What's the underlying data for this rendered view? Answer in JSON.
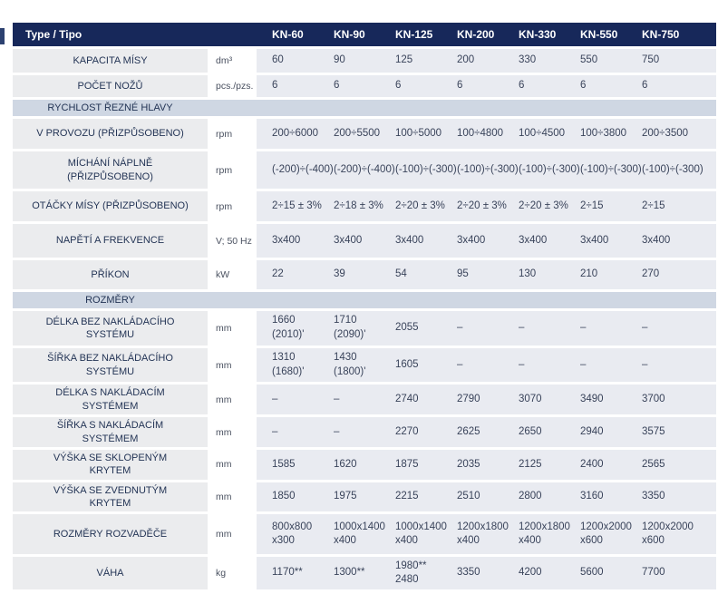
{
  "colors": {
    "header_bg": "#17285a",
    "section_bg": "#cfd7e3",
    "label_bg": "#ebecee",
    "data_bg": "#e9ebf1",
    "label_text": "#233455",
    "value_text": "#39435a",
    "unit_text": "#4a5160",
    "tick": "#2c4170"
  },
  "header": {
    "type_label": "Type / Tipo",
    "models": [
      "KN-60",
      "KN-90",
      "KN-125",
      "KN-200",
      "KN-330",
      "KN-550",
      "KN-750"
    ]
  },
  "rows": [
    {
      "type": "data",
      "label": "KAPACITA MÍSY",
      "unit": "dm³",
      "values": [
        "60",
        "90",
        "125",
        "200",
        "330",
        "550",
        "750"
      ]
    },
    {
      "type": "data",
      "label": "POČET NOŽŮ",
      "unit": "pcs./pzs.",
      "values": [
        "6",
        "6",
        "6",
        "6",
        "6",
        "6",
        "6"
      ]
    },
    {
      "type": "section",
      "label": "RYCHLOST ŘEZNÉ HLAVY"
    },
    {
      "type": "data",
      "label": "V PROVOZU (PŘIZPŮSOBENO)",
      "unit": "rpm",
      "values": [
        "200÷6000",
        "200÷5500",
        "100÷5000",
        "100÷4800",
        "100÷4500",
        "100÷3800",
        "200÷3500"
      ]
    },
    {
      "type": "data",
      "label": "MÍCHÁNÍ NÁPLNĚ\n(PŘIZPŮSOBENO)",
      "unit": "rpm",
      "values": [
        "(-200)÷(-400)",
        "(-200)÷(-400)",
        "(-100)÷(-300)",
        "(-100)÷(-300)",
        "(-100)÷(-300)",
        "(-100)÷(-300)",
        "(-100)÷(-300)"
      ]
    },
    {
      "type": "data",
      "label": "OTÁČKY MÍSY (PŘIZPŮSOBENO)",
      "unit": "rpm",
      "values": [
        "2÷15 ± 3%",
        "2÷18 ± 3%",
        "2÷20 ± 3%",
        "2÷20 ± 3%",
        "2÷20 ± 3%",
        "2÷15",
        "2÷15"
      ]
    },
    {
      "type": "data",
      "label": "NAPĚTÍ A FREKVENCE",
      "unit": "V; 50 Hz",
      "values": [
        "3x400",
        "3x400",
        "3x400",
        "3x400",
        "3x400",
        "3x400",
        "3x400"
      ]
    },
    {
      "type": "data",
      "label": "PŘÍKON",
      "unit": "kW",
      "values": [
        "22",
        "39",
        "54",
        "95",
        "130",
        "210",
        "270"
      ]
    },
    {
      "type": "section",
      "label": "ROZMĚRY"
    },
    {
      "type": "data",
      "label": "DÉLKA BEZ NAKLÁDACÍHO\nSYSTÉMU",
      "unit": "mm",
      "values": [
        "1660\n(2010)'",
        "1710\n(2090)'",
        "2055",
        "–",
        "–",
        "–",
        "–"
      ]
    },
    {
      "type": "data",
      "label": "ŠÍŘKA BEZ NAKLÁDACÍHO\nSYSTÉMU",
      "unit": "mm",
      "values": [
        "1310\n(1680)'",
        "1430\n(1800)'",
        "1605",
        "–",
        "–",
        "–",
        "–"
      ]
    },
    {
      "type": "data",
      "label": "DÉLKA S NAKLÁDACÍM\nSYSTÉMEM",
      "unit": "mm",
      "values": [
        "–",
        "–",
        "2740",
        "2790",
        "3070",
        "3490",
        "3700"
      ]
    },
    {
      "type": "data",
      "label": "ŠÍŘKA S NAKLÁDACÍM\nSYSTÉMEM",
      "unit": "mm",
      "values": [
        "–",
        "–",
        "2270",
        "2625",
        "2650",
        "2940",
        "3575"
      ]
    },
    {
      "type": "data",
      "label": "VÝŠKA SE SKLOPENÝM\nKRYTEM",
      "unit": "mm",
      "values": [
        "1585",
        "1620",
        "1875",
        "2035",
        "2125",
        "2400",
        "2565"
      ]
    },
    {
      "type": "data",
      "label": "VÝŠKA SE ZVEDNUTÝM\nKRYTEM",
      "unit": "mm",
      "values": [
        "1850",
        "1975",
        "2215",
        "2510",
        "2800",
        "3160",
        "3350"
      ]
    },
    {
      "type": "data",
      "label": "ROZMĚRY ROZVADĚČE",
      "unit": "mm",
      "values": [
        "800x800\nx300",
        "1000x1400\nx400",
        "1000x1400\nx400",
        "1200x1800\nx400",
        "1200x1800\nx400",
        "1200x2000\nx600",
        "1200x2000\nx600"
      ]
    },
    {
      "type": "data",
      "label": "VÁHA",
      "unit": "kg",
      "values": [
        "1170**",
        "1300**",
        "1980**\n2480",
        "3350",
        "4200",
        "5600",
        "7700"
      ]
    }
  ]
}
